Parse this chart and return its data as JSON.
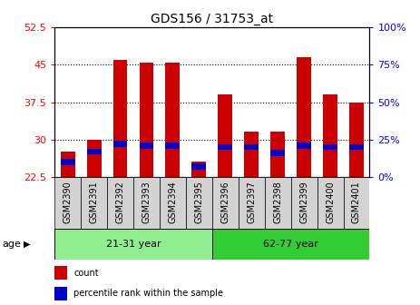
{
  "title": "GDS156 / 31753_at",
  "samples": [
    "GSM2390",
    "GSM2391",
    "GSM2392",
    "GSM2393",
    "GSM2394",
    "GSM2395",
    "GSM2396",
    "GSM2397",
    "GSM2398",
    "GSM2399",
    "GSM2400",
    "GSM2401"
  ],
  "count_values": [
    27.5,
    30.0,
    46.0,
    45.5,
    45.5,
    25.5,
    39.0,
    31.5,
    31.5,
    46.5,
    39.0,
    37.5
  ],
  "percentile_values": [
    10,
    17,
    22,
    21,
    21,
    7,
    20,
    20,
    16,
    21,
    20,
    20
  ],
  "y_min": 22.5,
  "y_max": 52.5,
  "y_ticks": [
    22.5,
    30,
    37.5,
    45,
    52.5
  ],
  "y_right_ticks": [
    0,
    25,
    50,
    75,
    100
  ],
  "y_right_tick_positions": [
    22.5,
    30,
    37.5,
    45,
    52.5
  ],
  "groups": [
    {
      "label": "21-31 year",
      "start": 0,
      "end": 5,
      "color": "#90EE90"
    },
    {
      "label": "62-77 year",
      "start": 6,
      "end": 11,
      "color": "#32CD32"
    }
  ],
  "bar_color": "#CC0000",
  "percentile_color": "#0000CC",
  "background_color": "#ffffff",
  "bar_width": 0.55,
  "age_label": "age",
  "legend_count": "count",
  "legend_percentile": "percentile rank within the sample",
  "tick_label_bg": "#d3d3d3"
}
